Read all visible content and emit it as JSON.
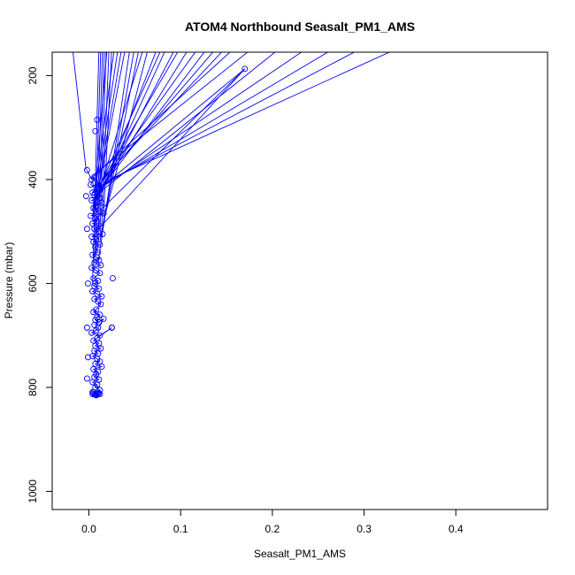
{
  "chart_data": {
    "type": "line",
    "title": "ATOM4 Northbound Seasalt_PM1_AMS",
    "xlabel": "Seasalt_PM1_AMS",
    "ylabel": "Pressure (mbar)",
    "xlim": [
      -0.04,
      0.5
    ],
    "ylim": [
      1035,
      155
    ],
    "y_reversed": true,
    "x_ticks": [
      0.0,
      0.1,
      0.2,
      0.3,
      0.4
    ],
    "x_tick_labels": [
      "0.0",
      "0.1",
      "0.2",
      "0.3",
      "0.4"
    ],
    "y_ticks": [
      200,
      400,
      600,
      800,
      1000
    ],
    "y_tick_labels": [
      "200",
      "400",
      "600",
      "800",
      "1000"
    ],
    "grid": false,
    "legend": "none",
    "marker": "open-circle",
    "color": "#0000ff",
    "series": [
      {
        "x": [
          -0.002,
          0.003,
          0.006,
          0.002,
          0.008,
          0.004,
          0.01,
          0.006,
          0.012,
          0.003,
          0.014,
          0.008,
          0.005,
          0.011,
          0.002,
          0.016,
          0.007,
          0.009,
          0.004,
          0.013,
          0.006,
          0.01,
          0.003,
          0.015,
          0.008,
          0.005,
          0.012,
          0.007,
          0.01,
          0.004,
          0.009,
          0.011,
          0.006,
          0.013,
          0.003,
          0.008,
          0.012,
          0.005,
          0.01,
          0.007,
          0.006,
          0.011,
          0.004,
          0.009,
          0.014,
          0.006,
          0.01,
          0.013,
          0.008,
          0.005,
          0.012,
          0.009,
          0.007,
          0.011,
          0.006,
          0.016,
          0.01,
          0.008,
          0.003,
          0.012,
          0.025,
          0.009,
          0.005,
          0.011,
          0.007,
          0.013,
          0.006,
          0.01,
          0.004,
          0.009,
          0.012,
          0.007,
          0.014,
          0.005,
          0.01,
          0.008,
          0.006,
          0.011,
          0.004,
          0.009,
          0.007,
          0.012,
          0.005,
          0.01,
          0.008,
          0.006,
          0.011,
          0.004,
          0.009,
          0.007
        ],
        "y": [
          382,
          400,
          395,
          410,
          415,
          425,
          420,
          430,
          435,
          440,
          445,
          450,
          455,
          460,
          470,
          465,
          475,
          480,
          485,
          490,
          495,
          500,
          510,
          505,
          515,
          520,
          525,
          530,
          540,
          545,
          550,
          555,
          560,
          565,
          570,
          575,
          580,
          590,
          595,
          600,
          605,
          610,
          615,
          620,
          625,
          630,
          635,
          640,
          650,
          655,
          660,
          665,
          670,
          675,
          680,
          668,
          685,
          690,
          695,
          700,
          685,
          705,
          710,
          715,
          720,
          725,
          730,
          735,
          740,
          745,
          750,
          755,
          760,
          765,
          770,
          775,
          780,
          785,
          790,
          795,
          800,
          805,
          810,
          812,
          815,
          813,
          811,
          809,
          812,
          814
        ]
      }
    ],
    "outliers": [
      {
        "x": 0.17,
        "y": 187
      },
      {
        "x": 0.026,
        "y": 590
      },
      {
        "x": 0.025,
        "y": 685
      },
      {
        "x": -0.003,
        "y": 432
      },
      {
        "x": -0.002,
        "y": 495
      },
      {
        "x": -0.001,
        "y": 600
      },
      {
        "x": -0.002,
        "y": 685
      },
      {
        "x": -0.001,
        "y": 742
      },
      {
        "x": -0.002,
        "y": 783
      },
      {
        "x": 0.004,
        "y": 813
      },
      {
        "x": 0.009,
        "y": 285
      },
      {
        "x": 0.007,
        "y": 307
      },
      {
        "x": 0.012,
        "y": 813
      }
    ],
    "upward_excursion_x": [
      0.02,
      0.04,
      0.06,
      0.08,
      0.1,
      0.12,
      0.14,
      0.16,
      0.18,
      0.21,
      0.24,
      0.27,
      0.3,
      0.34,
      0.011,
      0.013,
      0.015,
      0.017,
      0.019,
      0.022,
      0.025,
      0.028,
      0.032,
      0.036,
      0.045,
      0.05,
      0.055,
      0.065,
      0.075,
      0.085,
      0.095,
      0.11,
      0.13,
      0.15
    ],
    "upward_excursion_from_y": [
      480,
      460,
      440,
      420,
      410,
      405,
      400,
      395,
      390,
      430,
      420,
      415,
      410,
      405,
      600,
      560,
      540,
      520,
      500,
      490,
      470,
      460,
      450,
      440,
      560,
      520,
      500,
      480,
      470,
      450,
      440,
      430,
      420,
      400
    ]
  }
}
